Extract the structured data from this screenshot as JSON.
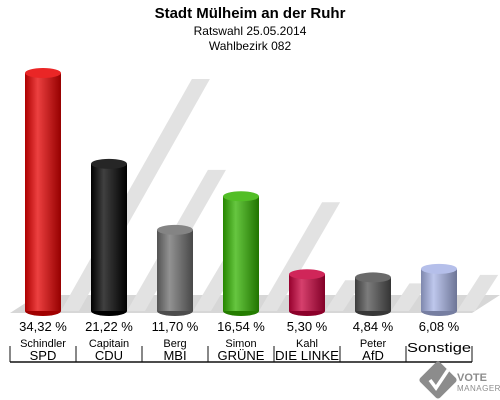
{
  "header": {
    "title": "Stadt Mülheim an der Ruhr",
    "subtitle": "Ratswahl 25.05.2014",
    "district": "Wahlbezirk 082"
  },
  "chart_data": {
    "type": "bar",
    "title": "Stadt Mülheim an der Ruhr",
    "subtitle": "Ratswahl 25.05.2014",
    "ylim": [
      0,
      34.32
    ],
    "grid": false,
    "legend": "none",
    "categories": [
      "SPD",
      "CDU",
      "MBI",
      "GRÜNE",
      "DIE LINKE",
      "AfD",
      "Sonstige"
    ],
    "candidates": [
      "Schindler",
      "Capitain",
      "Berg",
      "Simon",
      "Kahl",
      "Peter",
      ""
    ],
    "values": [
      34.32,
      21.22,
      11.7,
      16.54,
      5.3,
      4.84,
      6.08
    ],
    "value_labels": [
      "34,32 %",
      "21,22 %",
      "11,70 %",
      "16,54 %",
      "5,30 %",
      "4,84 %",
      "6,08 %"
    ],
    "colors": [
      "#e60000",
      "#000000",
      "#6e6e6e",
      "#33b300",
      "#c8003c",
      "#505050",
      "#a8b4e6"
    ]
  },
  "logo": {
    "line1": "VOTE",
    "line2": "MANAGER",
    "icon": "checkmark-icon"
  }
}
